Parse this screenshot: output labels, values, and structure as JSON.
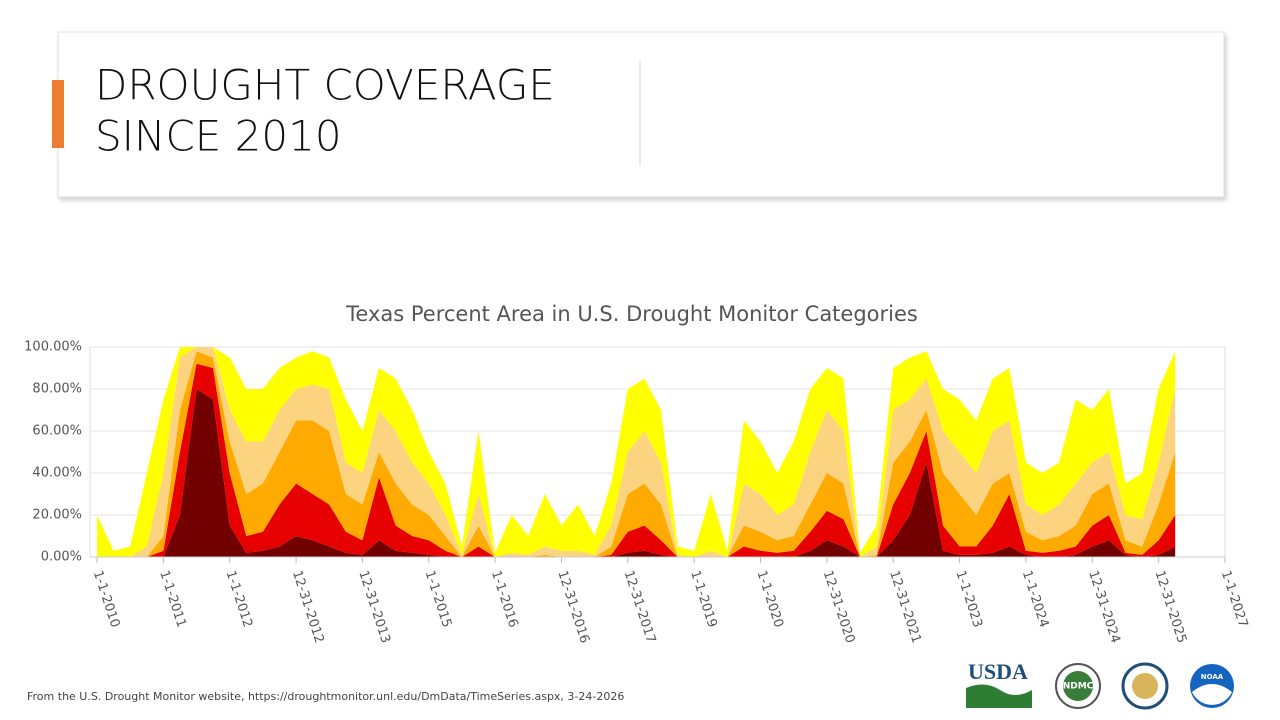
{
  "slide": {
    "title_lines": [
      "DROUGHT COVERAGE",
      "SINCE 2010"
    ],
    "source": "From the U.S. Drought Monitor website, https://droughtmonitor.unl.edu/DmData/TimeSeries.aspx, 3-24-2026",
    "logos": [
      "USDA",
      "NDMC",
      "NOAA"
    ]
  },
  "chart_data": {
    "type": "stacked-area",
    "title": "Texas Percent Area in U.S. Drought Monitor Categories",
    "x": [
      2010,
      2010.25,
      2010.5,
      2010.75,
      2011,
      2011.25,
      2011.5,
      2011.75,
      2012,
      2012.25,
      2012.5,
      2012.75,
      2013,
      2013.25,
      2013.5,
      2013.75,
      2014,
      2014.25,
      2014.5,
      2014.75,
      2015,
      2015.25,
      2015.5,
      2015.75,
      2016,
      2016.25,
      2016.5,
      2016.75,
      2017,
      2017.25,
      2017.5,
      2017.75,
      2018,
      2018.25,
      2018.5,
      2018.75,
      2019,
      2019.25,
      2019.5,
      2019.75,
      2020,
      2020.25,
      2020.5,
      2020.75,
      2021,
      2021.25,
      2021.5,
      2021.75,
      2022,
      2022.25,
      2022.5,
      2022.75,
      2023,
      2023.25,
      2023.5,
      2023.75,
      2024,
      2024.25,
      2024.5,
      2024.75,
      2025,
      2025.25,
      2025.5,
      2025.75,
      2026,
      2026.25
    ],
    "series": [
      {
        "color": "#730000",
        "values": [
          0,
          0,
          0,
          0,
          0,
          20,
          80,
          75,
          15,
          2,
          3,
          5,
          10,
          8,
          5,
          2,
          1,
          8,
          3,
          2,
          1,
          0,
          0,
          0,
          0,
          0,
          0,
          0,
          0,
          0,
          0,
          0,
          2,
          3,
          1,
          0,
          0,
          0,
          0,
          0,
          0,
          0,
          0,
          3,
          8,
          5,
          0,
          0,
          8,
          20,
          45,
          3,
          1,
          1,
          2,
          5,
          1,
          0,
          0,
          1,
          5,
          8,
          1,
          0,
          1,
          5
        ]
      },
      {
        "color": "#e60000",
        "values": [
          0,
          0,
          0,
          0,
          3,
          30,
          12,
          15,
          25,
          8,
          9,
          20,
          25,
          22,
          20,
          10,
          7,
          30,
          12,
          8,
          7,
          3,
          0,
          5,
          0,
          0,
          0,
          0,
          0,
          0,
          0,
          1,
          10,
          12,
          7,
          0,
          0,
          0,
          0,
          5,
          3,
          2,
          3,
          9,
          14,
          13,
          0,
          0,
          17,
          20,
          15,
          12,
          4,
          4,
          13,
          25,
          2,
          2,
          3,
          4,
          10,
          12,
          1,
          1,
          7,
          15
        ]
      },
      {
        "color": "#ffaa00",
        "values": [
          0,
          0,
          0,
          0,
          7,
          20,
          6,
          5,
          15,
          20,
          23,
          25,
          30,
          35,
          35,
          18,
          17,
          12,
          20,
          15,
          12,
          7,
          0,
          10,
          0,
          0,
          0,
          1,
          0,
          0,
          0,
          4,
          18,
          20,
          17,
          0,
          0,
          0,
          0,
          10,
          9,
          6,
          7,
          13,
          18,
          17,
          0,
          1,
          20,
          15,
          10,
          25,
          25,
          15,
          20,
          10,
          9,
          6,
          7,
          10,
          15,
          15,
          6,
          4,
          17,
          30
        ]
      },
      {
        "color": "#fcd37f",
        "values": [
          0,
          0,
          0,
          5,
          30,
          25,
          2,
          5,
          15,
          25,
          20,
          20,
          15,
          17,
          20,
          15,
          15,
          20,
          25,
          20,
          15,
          10,
          1,
          15,
          0,
          2,
          1,
          4,
          3,
          3,
          1,
          10,
          20,
          25,
          20,
          1,
          0,
          3,
          0,
          20,
          18,
          12,
          15,
          25,
          30,
          25,
          0,
          4,
          25,
          20,
          15,
          20,
          20,
          20,
          25,
          25,
          13,
          12,
          15,
          20,
          15,
          15,
          12,
          13,
          20,
          30
        ]
      },
      {
        "color": "#ffff00",
        "values": [
          20,
          3,
          5,
          35,
          35,
          5,
          0,
          0,
          25,
          25,
          25,
          20,
          15,
          16,
          15,
          30,
          20,
          20,
          25,
          25,
          15,
          15,
          4,
          30,
          2,
          18,
          9,
          25,
          12,
          22,
          9,
          20,
          30,
          25,
          25,
          4,
          3,
          27,
          3,
          30,
          25,
          20,
          30,
          30,
          20,
          25,
          2,
          10,
          20,
          20,
          13,
          20,
          25,
          25,
          25,
          25,
          20,
          20,
          20,
          40,
          25,
          30,
          15,
          22,
          35,
          18
        ]
      }
    ],
    "xlim": [
      2010,
      2027
    ],
    "xticks": [
      {
        "value": 2010,
        "label": "1-1-2010"
      },
      {
        "value": 2011,
        "label": "1-1-2011"
      },
      {
        "value": 2012,
        "label": "1-1-2012"
      },
      {
        "value": 2013,
        "label": "12-31-2012"
      },
      {
        "value": 2014,
        "label": "12-31-2013"
      },
      {
        "value": 2015,
        "label": "1-1-2015"
      },
      {
        "value": 2016,
        "label": "1-1-2016"
      },
      {
        "value": 2017,
        "label": "12-31-2016"
      },
      {
        "value": 2018,
        "label": "12-31-2017"
      },
      {
        "value": 2019,
        "label": "1-1-2019"
      },
      {
        "value": 2020,
        "label": "1-1-2020"
      },
      {
        "value": 2021,
        "label": "12-31-2020"
      },
      {
        "value": 2022,
        "label": "12-31-2021"
      },
      {
        "value": 2023,
        "label": "1-1-2023"
      },
      {
        "value": 2024,
        "label": "1-1-2024"
      },
      {
        "value": 2025,
        "label": "12-31-2024"
      },
      {
        "value": 2026,
        "label": "12-31-2025"
      },
      {
        "value": 2027,
        "label": "1-1-2027"
      }
    ],
    "ylim": [
      0,
      100
    ],
    "yticks": [
      {
        "value": 0,
        "label": "0.00%"
      },
      {
        "value": 20,
        "label": "20.00%"
      },
      {
        "value": 40,
        "label": "40.00%"
      },
      {
        "value": 60,
        "label": "60.00%"
      },
      {
        "value": 80,
        "label": "80.00%"
      },
      {
        "value": 100,
        "label": "100.00%"
      }
    ],
    "grid": true
  }
}
